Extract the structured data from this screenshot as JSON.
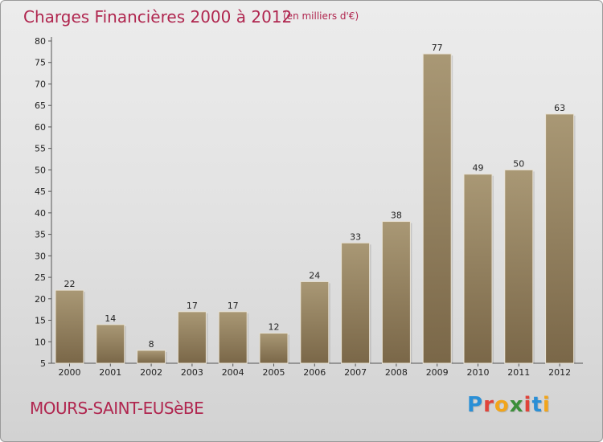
{
  "page": {
    "title": "Charges Financières 2000 à 2012",
    "subtitle": "(en milliers d'€)",
    "place": "MOURS-SAINT-EUSèBE",
    "logo": {
      "letters": [
        "P",
        "r",
        "o",
        "x",
        "i",
        "t",
        "i"
      ],
      "colors": [
        "#2a8fd6",
        "#e0433a",
        "#f2a51a",
        "#3c8f3a",
        "#e0433a",
        "#2a8fd6",
        "#f2a51a"
      ]
    }
  },
  "chart_data": {
    "type": "bar",
    "title": "Charges Financières 2000 à 2012",
    "subtitle": "(en milliers d'€)",
    "categories": [
      "2000",
      "2001",
      "2002",
      "2003",
      "2004",
      "2005",
      "2006",
      "2007",
      "2008",
      "2009",
      "2010",
      "2011",
      "2012"
    ],
    "values": [
      22,
      14,
      8,
      17,
      17,
      12,
      24,
      33,
      38,
      77,
      49,
      50,
      63
    ],
    "ylim": [
      5,
      80
    ],
    "yticks": [
      5,
      10,
      15,
      20,
      25,
      30,
      35,
      40,
      45,
      50,
      55,
      60,
      65,
      70,
      75,
      80
    ],
    "grid": false,
    "bar_color_top": "#a99875",
    "bar_color_bottom": "#7a6748"
  }
}
